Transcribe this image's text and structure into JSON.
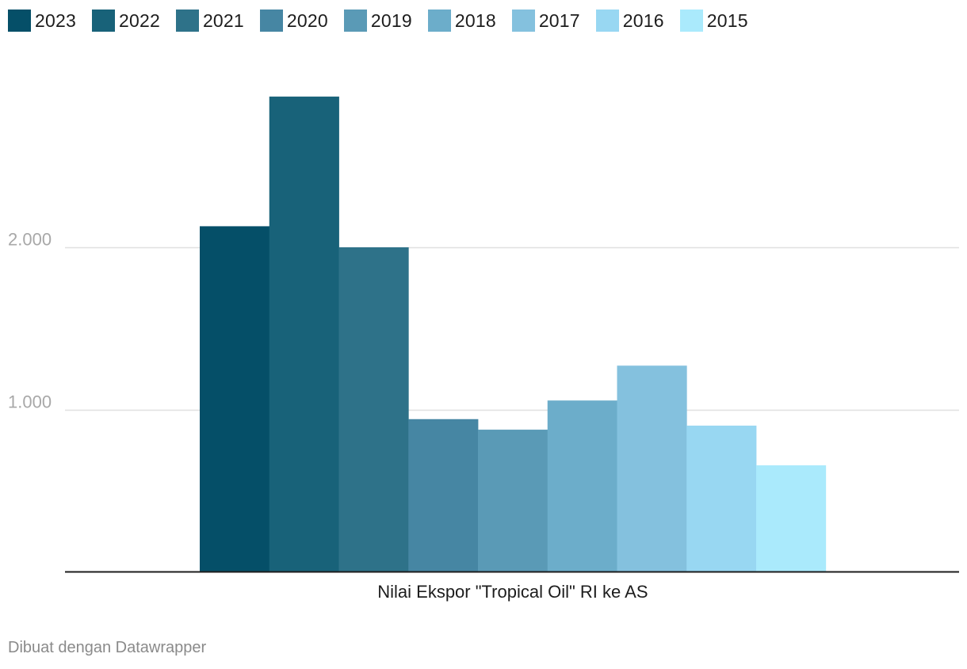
{
  "chart_data": {
    "type": "bar",
    "categories": [
      "Nilai Ekspor \"Tropical Oil\" RI ke AS"
    ],
    "series": [
      {
        "name": "2023",
        "values": [
          2130
        ],
        "color": "#054f68"
      },
      {
        "name": "2022",
        "values": [
          2930
        ],
        "color": "#186279"
      },
      {
        "name": "2021",
        "values": [
          2000
        ],
        "color": "#2e7289"
      },
      {
        "name": "2020",
        "values": [
          940
        ],
        "color": "#4686a3"
      },
      {
        "name": "2019",
        "values": [
          875
        ],
        "color": "#5a9ab6"
      },
      {
        "name": "2018",
        "values": [
          1055
        ],
        "color": "#6cadca"
      },
      {
        "name": "2017",
        "values": [
          1270
        ],
        "color": "#84c1de"
      },
      {
        "name": "2016",
        "values": [
          900
        ],
        "color": "#98d7f2"
      },
      {
        "name": "2015",
        "values": [
          655
        ],
        "color": "#aaeafc"
      }
    ],
    "yticks": [
      {
        "value": 1000,
        "label": "1.000"
      },
      {
        "value": 2000,
        "label": "2.000"
      }
    ],
    "ylim": [
      0,
      3000
    ],
    "grid": true,
    "legend_position": "top-left",
    "title": "",
    "xlabel": "",
    "ylabel": ""
  },
  "credit": "Dibuat dengan Datawrapper"
}
